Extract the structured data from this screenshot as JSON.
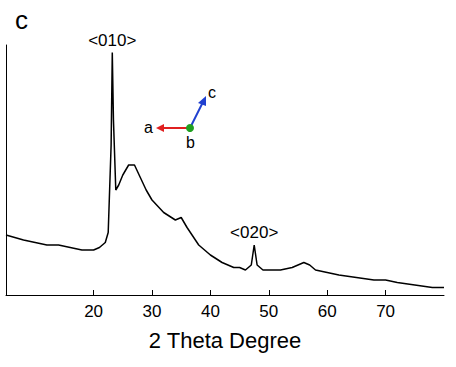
{
  "chart_data": {
    "type": "line",
    "title": "c",
    "x_label": "2 Theta Degree",
    "x": [
      5,
      8,
      10,
      12,
      14,
      16,
      18,
      20,
      21,
      22,
      22.5,
      23,
      23.2,
      23.4,
      23.8,
      24.3,
      25,
      26,
      27,
      28,
      29,
      30,
      32,
      34,
      35,
      36,
      38,
      40,
      42,
      44,
      45,
      46,
      47,
      47.5,
      48,
      49,
      50,
      52,
      54,
      55,
      56,
      57,
      58,
      60,
      62,
      65,
      68,
      70,
      72,
      75,
      78,
      80
    ],
    "values": [
      24,
      22,
      21,
      20,
      20,
      19,
      18,
      18,
      19,
      21,
      25,
      60,
      97,
      70,
      42,
      44,
      48,
      52,
      52,
      47,
      42,
      38,
      33,
      30,
      31,
      27,
      20,
      16,
      13,
      11,
      11,
      10,
      12,
      20,
      12,
      10,
      10,
      10,
      11,
      12,
      13,
      12,
      10,
      9,
      8,
      7,
      6,
      6,
      5,
      4,
      3,
      3
    ],
    "color": "#000000",
    "xlim": [
      5,
      80
    ],
    "xticks": [
      20,
      30,
      40,
      50,
      60,
      70
    ],
    "ylim": [
      0,
      100
    ],
    "tick_labels": "x",
    "grid": false,
    "annotations": [
      {
        "text": "<010>",
        "x": 23.2
      },
      {
        "text": "<020>",
        "x": 47.5
      }
    ],
    "inset_axis_labels": [
      "a",
      "b",
      "c"
    ]
  }
}
